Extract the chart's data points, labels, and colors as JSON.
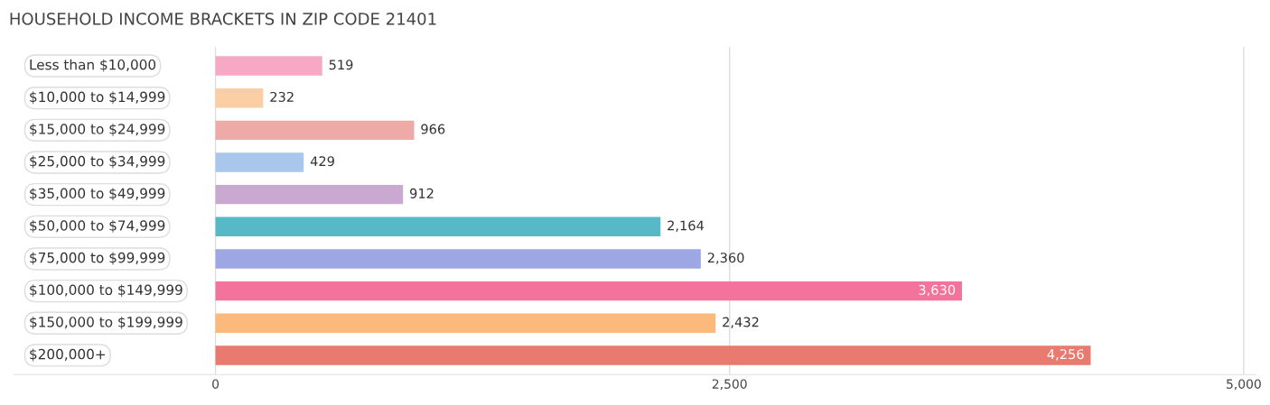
{
  "chart_data": {
    "type": "bar",
    "orientation": "horizontal",
    "title": "HOUSEHOLD INCOME BRACKETS IN ZIP CODE 21401",
    "categories": [
      "Less than $10,000",
      "$10,000 to $14,999",
      "$15,000 to $24,999",
      "$25,000 to $34,999",
      "$35,000 to $49,999",
      "$50,000 to $74,999",
      "$75,000 to $99,999",
      "$100,000 to $149,999",
      "$150,000 to $199,999",
      "$200,000+"
    ],
    "values": [
      519,
      232,
      966,
      429,
      912,
      2164,
      2360,
      3630,
      2432,
      4256
    ],
    "colors": [
      "#f7a8c4",
      "#fbcfa3",
      "#eeaaa6",
      "#a9c7ec",
      "#c9a9d0",
      "#57b8c8",
      "#9da7e4",
      "#f3739c",
      "#fbb97b",
      "#e87a70"
    ],
    "value_labels": [
      "519",
      "232",
      "966",
      "429",
      "912",
      "2,164",
      "2,360",
      "3,630",
      "2,432",
      "4,256"
    ],
    "xlim": [
      -980,
      5060
    ],
    "xticks": [
      0,
      {
        "value": 2500,
        "label": "2,500"
      },
      {
        "value": 5000,
        "label": "5,000"
      }
    ],
    "grid": "x",
    "tick_labels": "x"
  }
}
